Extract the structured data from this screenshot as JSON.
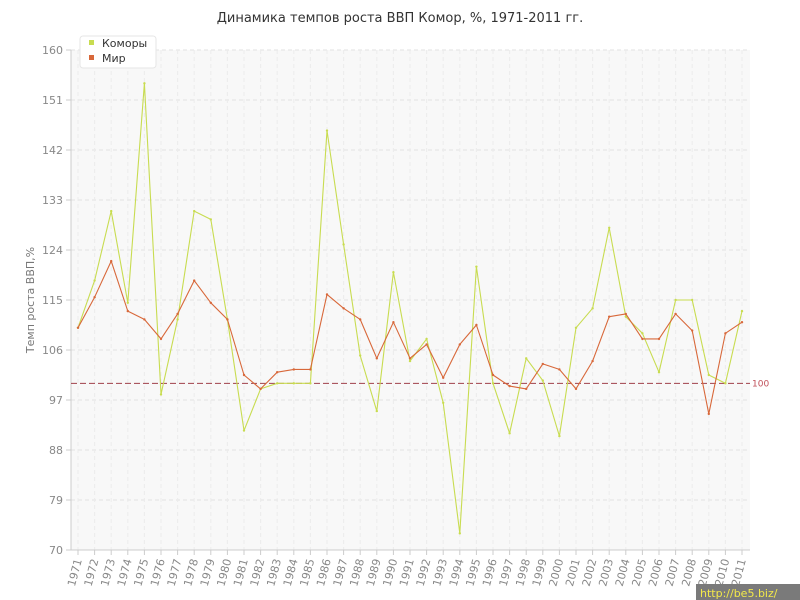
{
  "chart_data": {
    "type": "line",
    "title": "Динамика темпов роста ВВП Комор, %, 1971-2011 гг.",
    "xlabel": "",
    "ylabel": "Темп роста ВВП,%",
    "ylim": [
      70,
      160
    ],
    "yticks": [
      "70",
      "79",
      "88",
      "97",
      "106",
      "115",
      "124",
      "133",
      "142",
      "151",
      "160"
    ],
    "grid": true,
    "legend_position": "top-left",
    "categories": [
      "1971",
      "1972",
      "1973",
      "1974",
      "1975",
      "1976",
      "1977",
      "1978",
      "1979",
      "1980",
      "1981",
      "1982",
      "1983",
      "1984",
      "1985",
      "1986",
      "1987",
      "1988",
      "1989",
      "1990",
      "1991",
      "1992",
      "1993",
      "1994",
      "1995",
      "1996",
      "1997",
      "1998",
      "1999",
      "2000",
      "2001",
      "2002",
      "2003",
      "2004",
      "2005",
      "2006",
      "2007",
      "2008",
      "2009",
      "2010",
      "2011"
    ],
    "series": [
      {
        "name": "Коморы",
        "color": "#c8dc50",
        "values": [
          110.0,
          118.5,
          131.0,
          114.5,
          154.0,
          98.0,
          111.5,
          131.0,
          129.5,
          111.5,
          91.5,
          99.0,
          100.0,
          100.0,
          100.0,
          145.5,
          125.0,
          105.0,
          95.0,
          120.0,
          104.0,
          108.0,
          96.5,
          73.0,
          121.0,
          100.0,
          91.0,
          104.5,
          100.5,
          90.5,
          110.0,
          113.5,
          128.0,
          112.0,
          109.0,
          102.0,
          115.0,
          115.0,
          101.5,
          100.0,
          113.0
        ]
      },
      {
        "name": "Мир",
        "color": "#d8683a",
        "values": [
          110.0,
          115.5,
          122.0,
          113.0,
          111.5,
          108.0,
          112.5,
          118.5,
          114.5,
          111.5,
          101.5,
          99.0,
          102.0,
          102.5,
          102.5,
          116.0,
          113.5,
          111.5,
          104.5,
          111.0,
          104.5,
          107.0,
          101.0,
          107.0,
          110.5,
          101.5,
          99.5,
          99.0,
          103.5,
          102.5,
          99.0,
          104.0,
          112.0,
          112.5,
          108.0,
          108.0,
          112.5,
          109.5,
          94.5,
          109.0,
          111.0
        ]
      }
    ],
    "reference_line": {
      "value": 100,
      "label": "100",
      "color": "#a0404a"
    }
  },
  "watermark": "http://be5.biz/"
}
